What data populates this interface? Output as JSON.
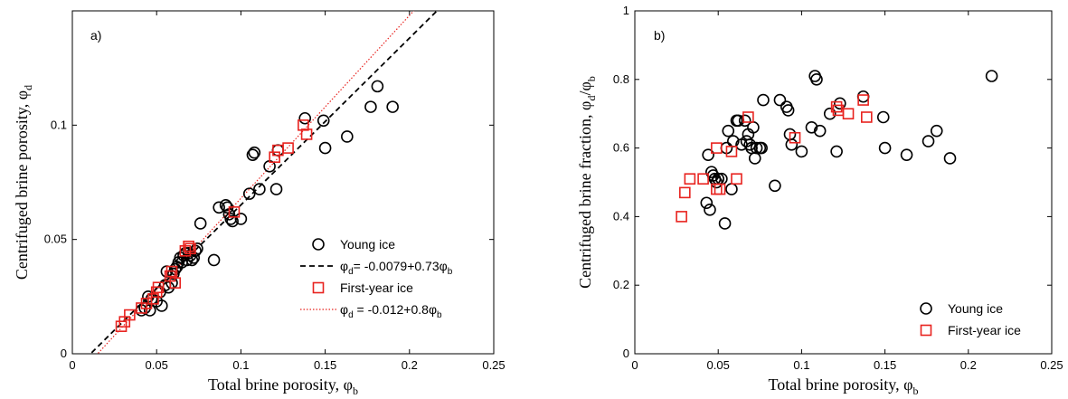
{
  "chart_data": [
    {
      "type": "scatter",
      "panel_label": "a)",
      "xlabel": "Total brine porosity,  ",
      "xlabel_symbol": "φ",
      "xlabel_sub": "b",
      "ylabel": "Centrifuged brine porosity,  ",
      "ylabel_symbol": "φ",
      "ylabel_sub": "d",
      "xlim": [
        0,
        0.25
      ],
      "ylim": [
        0,
        0.15
      ],
      "xticks": [
        "0",
        "0.05",
        "0.1",
        "0.15",
        "0.2",
        "0.25"
      ],
      "xtick_values": [
        0,
        0.05,
        0.1,
        0.15,
        0.2,
        0.25
      ],
      "yticks": [
        "0",
        "0.05",
        "0.1"
      ],
      "ytick_values": [
        0,
        0.05,
        0.1
      ],
      "legend_position": "bottom-right",
      "series": [
        {
          "name": "Young ice",
          "marker": "circle",
          "color": "#000000",
          "points": [
            [
              0.041,
              0.019
            ],
            [
              0.043,
              0.02
            ],
            [
              0.045,
              0.025
            ],
            [
              0.046,
              0.019
            ],
            [
              0.047,
              0.024
            ],
            [
              0.05,
              0.023
            ],
            [
              0.052,
              0.027
            ],
            [
              0.053,
              0.021
            ],
            [
              0.055,
              0.03
            ],
            [
              0.056,
              0.036
            ],
            [
              0.057,
              0.029
            ],
            [
              0.059,
              0.031
            ],
            [
              0.06,
              0.035
            ],
            [
              0.061,
              0.037
            ],
            [
              0.062,
              0.038
            ],
            [
              0.063,
              0.04
            ],
            [
              0.064,
              0.042
            ],
            [
              0.065,
              0.04
            ],
            [
              0.066,
              0.043
            ],
            [
              0.067,
              0.044
            ],
            [
              0.068,
              0.041
            ],
            [
              0.069,
              0.044
            ],
            [
              0.07,
              0.043
            ],
            [
              0.071,
              0.041
            ],
            [
              0.072,
              0.042
            ],
            [
              0.073,
              0.045
            ],
            [
              0.074,
              0.046
            ],
            [
              0.076,
              0.057
            ],
            [
              0.084,
              0.041
            ],
            [
              0.087,
              0.064
            ],
            [
              0.091,
              0.065
            ],
            [
              0.092,
              0.064
            ],
            [
              0.093,
              0.061
            ],
            [
              0.094,
              0.059
            ],
            [
              0.095,
              0.058
            ],
            [
              0.1,
              0.059
            ],
            [
              0.105,
              0.07
            ],
            [
              0.107,
              0.087
            ],
            [
              0.108,
              0.088
            ],
            [
              0.111,
              0.072
            ],
            [
              0.117,
              0.082
            ],
            [
              0.121,
              0.072
            ],
            [
              0.122,
              0.089
            ],
            [
              0.138,
              0.103
            ],
            [
              0.149,
              0.102
            ],
            [
              0.15,
              0.09
            ],
            [
              0.163,
              0.095
            ],
            [
              0.177,
              0.108
            ],
            [
              0.181,
              0.117
            ],
            [
              0.19,
              0.108
            ]
          ]
        },
        {
          "name": "First-year ice",
          "marker": "square",
          "color": "#e8231f",
          "points": [
            [
              0.029,
              0.012
            ],
            [
              0.031,
              0.014
            ],
            [
              0.034,
              0.017
            ],
            [
              0.041,
              0.02
            ],
            [
              0.044,
              0.022
            ],
            [
              0.048,
              0.024
            ],
            [
              0.05,
              0.027
            ],
            [
              0.051,
              0.029
            ],
            [
              0.058,
              0.034
            ],
            [
              0.059,
              0.036
            ],
            [
              0.061,
              0.031
            ],
            [
              0.067,
              0.045
            ],
            [
              0.069,
              0.047
            ],
            [
              0.07,
              0.046
            ],
            [
              0.096,
              0.062
            ],
            [
              0.12,
              0.086
            ],
            [
              0.122,
              0.089
            ],
            [
              0.128,
              0.09
            ],
            [
              0.137,
              0.1
            ],
            [
              0.139,
              0.096
            ]
          ]
        }
      ],
      "fits": [
        {
          "label_symbol": "φ",
          "label_sub": "d",
          "label_text": "= -0.0079+0.73",
          "label_end_symbol": "φ",
          "label_end_sub": "b",
          "intercept": -0.0079,
          "slope": 0.73,
          "style": "dashed",
          "color": "#000000"
        },
        {
          "label_symbol": "φ",
          "label_sub": "d",
          "label_text": " = -0.012+0.8",
          "label_end_symbol": "φ",
          "label_end_sub": "b",
          "intercept": -0.012,
          "slope": 0.8,
          "style": "dotted",
          "color": "#e8231f"
        }
      ]
    },
    {
      "type": "scatter",
      "panel_label": "b)",
      "xlabel": "Total brine porosity,  ",
      "xlabel_symbol": "φ",
      "xlabel_sub": "b",
      "ylabel": "Centrifuged brine fraction,  ",
      "ylabel_symbol": "φ",
      "ylabel_sub": "d",
      "ylabel_slash": "/",
      "ylabel_symbol2": "φ",
      "ylabel_sub2": "b",
      "xlim": [
        0,
        0.25
      ],
      "ylim": [
        0,
        1
      ],
      "xticks": [
        "0",
        "0.05",
        "0.1",
        "0.15",
        "0.2",
        "0.25"
      ],
      "xtick_values": [
        0,
        0.05,
        0.1,
        0.15,
        0.2,
        0.25
      ],
      "yticks": [
        "0",
        "0.2",
        "0.4",
        "0.6",
        "0.8",
        "1"
      ],
      "ytick_values": [
        0,
        0.2,
        0.4,
        0.6,
        0.8,
        1
      ],
      "legend_position": "bottom-right",
      "series": [
        {
          "name": "Young ice",
          "marker": "circle",
          "color": "#000000",
          "points": [
            [
              0.043,
              0.44
            ],
            [
              0.044,
              0.58
            ],
            [
              0.045,
              0.42
            ],
            [
              0.046,
              0.53
            ],
            [
              0.047,
              0.52
            ],
            [
              0.048,
              0.51
            ],
            [
              0.049,
              0.5
            ],
            [
              0.05,
              0.51
            ],
            [
              0.052,
              0.51
            ],
            [
              0.054,
              0.38
            ],
            [
              0.055,
              0.6
            ],
            [
              0.056,
              0.65
            ],
            [
              0.058,
              0.48
            ],
            [
              0.059,
              0.62
            ],
            [
              0.061,
              0.68
            ],
            [
              0.062,
              0.68
            ],
            [
              0.064,
              0.61
            ],
            [
              0.066,
              0.68
            ],
            [
              0.067,
              0.62
            ],
            [
              0.068,
              0.64
            ],
            [
              0.069,
              0.61
            ],
            [
              0.07,
              0.6
            ],
            [
              0.071,
              0.66
            ],
            [
              0.072,
              0.57
            ],
            [
              0.073,
              0.6
            ],
            [
              0.075,
              0.6
            ],
            [
              0.076,
              0.6
            ],
            [
              0.077,
              0.74
            ],
            [
              0.084,
              0.49
            ],
            [
              0.087,
              0.74
            ],
            [
              0.091,
              0.72
            ],
            [
              0.092,
              0.71
            ],
            [
              0.093,
              0.64
            ],
            [
              0.094,
              0.61
            ],
            [
              0.1,
              0.59
            ],
            [
              0.106,
              0.66
            ],
            [
              0.108,
              0.81
            ],
            [
              0.109,
              0.8
            ],
            [
              0.111,
              0.65
            ],
            [
              0.117,
              0.7
            ],
            [
              0.121,
              0.59
            ],
            [
              0.123,
              0.73
            ],
            [
              0.137,
              0.75
            ],
            [
              0.149,
              0.69
            ],
            [
              0.15,
              0.6
            ],
            [
              0.163,
              0.58
            ],
            [
              0.176,
              0.62
            ],
            [
              0.181,
              0.65
            ],
            [
              0.189,
              0.57
            ],
            [
              0.214,
              0.81
            ]
          ]
        },
        {
          "name": "First-year ice",
          "marker": "square",
          "color": "#e8231f",
          "points": [
            [
              0.028,
              0.4
            ],
            [
              0.03,
              0.47
            ],
            [
              0.033,
              0.51
            ],
            [
              0.041,
              0.51
            ],
            [
              0.049,
              0.48
            ],
            [
              0.049,
              0.6
            ],
            [
              0.051,
              0.48
            ],
            [
              0.058,
              0.59
            ],
            [
              0.061,
              0.51
            ],
            [
              0.068,
              0.69
            ],
            [
              0.096,
              0.63
            ],
            [
              0.121,
              0.72
            ],
            [
              0.122,
              0.71
            ],
            [
              0.128,
              0.7
            ],
            [
              0.137,
              0.74
            ],
            [
              0.139,
              0.69
            ]
          ]
        }
      ]
    }
  ]
}
